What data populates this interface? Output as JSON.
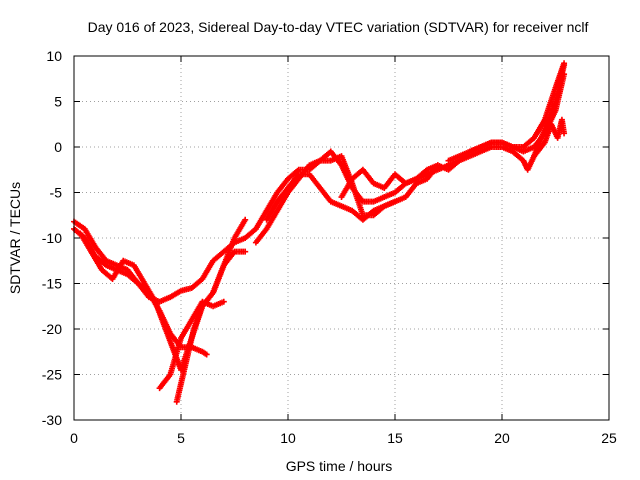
{
  "chart_data": {
    "type": "scatter",
    "title": "Day 016 of 2023, Sidereal Day-to-day VTEC variation (SDTVAR) for receiver nclf",
    "xlabel": "GPS time / hours",
    "ylabel": "SDTVAR / TECUs",
    "xlim": [
      0,
      25
    ],
    "ylim": [
      -30,
      10
    ],
    "xticks": [
      0,
      5,
      10,
      15,
      20,
      25
    ],
    "yticks": [
      10,
      5,
      0,
      -5,
      -10,
      -15,
      -20,
      -25,
      -30
    ],
    "grid": true,
    "marker": "+",
    "color": "#ff0000",
    "series": [
      {
        "name": "track-1",
        "points": [
          [
            0.0,
            -8.2
          ],
          [
            0.5,
            -9.0
          ],
          [
            1.0,
            -11.0
          ],
          [
            1.5,
            -12.5
          ],
          [
            2.0,
            -13.0
          ],
          [
            2.5,
            -13.5
          ],
          [
            3.0,
            -15.0
          ],
          [
            3.5,
            -16.5
          ],
          [
            4.0,
            -17.0
          ],
          [
            4.5,
            -16.5
          ],
          [
            5.0,
            -15.8
          ],
          [
            5.5,
            -15.5
          ],
          [
            6.0,
            -14.5
          ],
          [
            6.5,
            -12.5
          ],
          [
            7.0,
            -11.5
          ],
          [
            7.5,
            -10.5
          ],
          [
            8.0,
            -10.0
          ],
          [
            8.5,
            -9.0
          ],
          [
            9.0,
            -7.0
          ],
          [
            9.5,
            -5.0
          ],
          [
            10.0,
            -3.5
          ],
          [
            10.5,
            -2.5
          ],
          [
            11.0,
            -2.5
          ],
          [
            11.5,
            -1.5
          ],
          [
            12.0,
            -0.5
          ],
          [
            12.5,
            -2.0
          ],
          [
            13.0,
            -4.5
          ],
          [
            13.5,
            -6.0
          ],
          [
            14.0,
            -6.0
          ],
          [
            14.5,
            -5.5
          ],
          [
            15.0,
            -5.0
          ],
          [
            15.5,
            -4.0
          ],
          [
            16.0,
            -3.5
          ],
          [
            16.5,
            -3.0
          ],
          [
            17.0,
            -2.5
          ],
          [
            17.5,
            -2.0
          ],
          [
            18.0,
            -1.5
          ],
          [
            18.5,
            -0.5
          ],
          [
            19.0,
            0.0
          ],
          [
            19.5,
            0.5
          ],
          [
            20.0,
            0.5
          ],
          [
            20.5,
            0.0
          ],
          [
            21.0,
            -0.5
          ],
          [
            21.5,
            0.0
          ],
          [
            22.0,
            1.5
          ],
          [
            22.5,
            4.0
          ],
          [
            22.9,
            8.0
          ]
        ]
      },
      {
        "name": "track-2",
        "points": [
          [
            0.0,
            -9.0
          ],
          [
            0.5,
            -10.0
          ],
          [
            1.0,
            -12.0
          ],
          [
            1.5,
            -13.0
          ],
          [
            2.0,
            -13.5
          ],
          [
            2.5,
            -14.0
          ],
          [
            3.0,
            -15.0
          ],
          [
            3.5,
            -16.0
          ],
          [
            4.0,
            -18.0
          ],
          [
            4.5,
            -20.5
          ],
          [
            5.0,
            -22.0
          ],
          [
            5.5,
            -22.0
          ],
          [
            6.0,
            -22.5
          ],
          [
            6.2,
            -22.8
          ]
        ]
      },
      {
        "name": "track-3",
        "points": [
          [
            0.3,
            -9.5
          ],
          [
            0.8,
            -11.5
          ],
          [
            1.3,
            -13.5
          ],
          [
            1.8,
            -14.5
          ],
          [
            2.3,
            -12.5
          ],
          [
            2.8,
            -13.0
          ],
          [
            3.3,
            -15.0
          ],
          [
            3.8,
            -17.0
          ],
          [
            4.2,
            -19.5
          ],
          [
            4.6,
            -22.0
          ],
          [
            5.0,
            -24.5
          ],
          [
            5.5,
            -21.0
          ],
          [
            6.0,
            -17.5
          ],
          [
            6.5,
            -16.0
          ],
          [
            7.0,
            -13.0
          ],
          [
            7.5,
            -11.5
          ],
          [
            8.0,
            -11.5
          ]
        ]
      },
      {
        "name": "track-4",
        "points": [
          [
            4.0,
            -26.5
          ],
          [
            4.5,
            -25.0
          ],
          [
            5.0,
            -21.0
          ],
          [
            5.5,
            -19.0
          ],
          [
            6.0,
            -17.0
          ],
          [
            6.5,
            -17.5
          ],
          [
            7.0,
            -17.0
          ]
        ]
      },
      {
        "name": "track-5",
        "points": [
          [
            4.8,
            -28.0
          ],
          [
            5.2,
            -24.0
          ],
          [
            5.6,
            -20.0
          ],
          [
            6.0,
            -17.5
          ],
          [
            6.5,
            -16.0
          ],
          [
            7.0,
            -13.0
          ],
          [
            7.5,
            -10.0
          ],
          [
            8.0,
            -8.0
          ]
        ]
      },
      {
        "name": "track-6",
        "points": [
          [
            8.5,
            -10.5
          ],
          [
            9.0,
            -9.0
          ],
          [
            9.5,
            -7.0
          ],
          [
            10.0,
            -5.0
          ],
          [
            10.5,
            -3.5
          ],
          [
            11.0,
            -2.0
          ],
          [
            11.5,
            -1.5
          ],
          [
            12.0,
            -1.5
          ],
          [
            12.5,
            -1.0
          ],
          [
            13.0,
            -4.0
          ],
          [
            13.5,
            -7.5
          ],
          [
            14.0,
            -7.5
          ],
          [
            14.5,
            -6.5
          ],
          [
            15.0,
            -6.0
          ],
          [
            15.5,
            -5.5
          ],
          [
            16.0,
            -4.0
          ],
          [
            16.5,
            -3.5
          ],
          [
            17.0,
            -2.0
          ]
        ]
      },
      {
        "name": "track-7",
        "points": [
          [
            9.0,
            -8.0
          ],
          [
            9.5,
            -6.0
          ],
          [
            10.0,
            -4.5
          ],
          [
            10.5,
            -3.0
          ],
          [
            11.0,
            -3.0
          ],
          [
            11.5,
            -4.5
          ],
          [
            12.0,
            -6.0
          ],
          [
            12.5,
            -6.5
          ],
          [
            13.0,
            -7.0
          ],
          [
            13.5,
            -8.0
          ],
          [
            14.0,
            -7.0
          ],
          [
            14.5,
            -6.5
          ],
          [
            15.0,
            -6.0
          ]
        ]
      },
      {
        "name": "track-8",
        "points": [
          [
            12.5,
            -5.5
          ],
          [
            13.0,
            -3.5
          ],
          [
            13.5,
            -2.5
          ],
          [
            14.0,
            -4.0
          ],
          [
            14.5,
            -4.5
          ],
          [
            15.0,
            -3.0
          ],
          [
            15.5,
            -4.0
          ],
          [
            16.0,
            -3.5
          ],
          [
            16.5,
            -2.5
          ],
          [
            17.0,
            -2.0
          ],
          [
            17.5,
            -2.5
          ],
          [
            18.0,
            -1.5
          ],
          [
            18.5,
            -1.0
          ],
          [
            19.0,
            -0.5
          ],
          [
            19.5,
            0.0
          ],
          [
            20.0,
            0.0
          ],
          [
            20.5,
            -0.5
          ],
          [
            21.0,
            -1.5
          ],
          [
            21.2,
            -2.5
          ],
          [
            21.5,
            -1.0
          ],
          [
            22.0,
            2.0
          ],
          [
            22.5,
            5.0
          ],
          [
            22.9,
            9.0
          ]
        ]
      },
      {
        "name": "track-9",
        "points": [
          [
            17.5,
            -1.5
          ],
          [
            18.0,
            -1.0
          ],
          [
            18.5,
            -0.5
          ],
          [
            19.0,
            0.0
          ],
          [
            19.5,
            0.5
          ],
          [
            20.0,
            0.5
          ],
          [
            20.5,
            0.0
          ],
          [
            21.0,
            0.0
          ],
          [
            21.5,
            1.0
          ],
          [
            22.0,
            3.0
          ],
          [
            22.5,
            6.5
          ],
          [
            22.9,
            9.2
          ]
        ]
      },
      {
        "name": "track-10",
        "points": [
          [
            21.5,
            -1.0
          ],
          [
            22.0,
            0.5
          ],
          [
            22.3,
            2.5
          ],
          [
            22.6,
            1.0
          ],
          [
            22.8,
            3.0
          ],
          [
            22.9,
            1.5
          ]
        ]
      }
    ]
  }
}
